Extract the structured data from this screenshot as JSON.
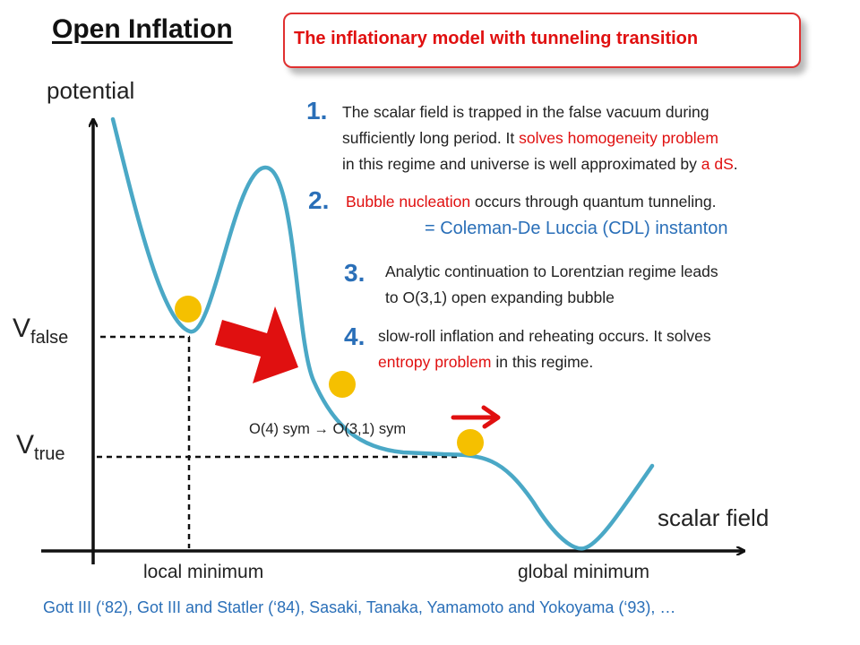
{
  "title": "Open Inflation",
  "subtitle": "The inflationary model with tunneling transition",
  "axes": {
    "y_label": "potential",
    "x_label": "scalar field"
  },
  "levels": {
    "false": {
      "main": "V",
      "sub": "false"
    },
    "true": {
      "main": "V",
      "sub": "true"
    }
  },
  "steps": [
    {
      "number": "1.",
      "lines": [
        [
          {
            "t": "The scalar field is trapped in the false vacuum during"
          }
        ],
        [
          {
            "t": "sufficiently long period. It "
          },
          {
            "t": "solves homogeneity problem",
            "c": "red"
          }
        ],
        [
          {
            "t": "in this regime and universe is well approximated by "
          },
          {
            "t": "a dS",
            "c": "red"
          },
          {
            "t": "."
          }
        ]
      ]
    },
    {
      "number": "2.",
      "lines": [
        [
          {
            "t": "Bubble nucleation",
            "c": "red"
          },
          {
            "t": " occurs through quantum tunneling."
          }
        ]
      ],
      "note": "= Coleman-De Luccia (CDL) instanton"
    },
    {
      "number": "3.",
      "lines": [
        [
          {
            "t": "Analytic continuation to Lorentzian regime leads"
          }
        ],
        [
          {
            "t": "to O(3,1) open expanding bubble"
          }
        ]
      ]
    },
    {
      "number": "4.",
      "lines": [
        [
          {
            "t": "slow-roll inflation and reheating occurs. It solves"
          }
        ],
        [
          {
            "t": "entropy problem",
            "c": "red"
          },
          {
            "t": " in this regime."
          }
        ]
      ]
    }
  ],
  "symmetry_label": "O(4) sym → O(3,1) sym",
  "minima": {
    "local": "local minimum",
    "global": "global minimum"
  },
  "references": "Gott III (‘82), Got III and Statler (‘84),  Sasaki, Tanaka, Yamamoto and Yokoyama (‘93), …",
  "colors": {
    "curve": "#4aa8c6",
    "ball": "#f5c000",
    "arrow": "#e01010",
    "accent_red": "#e01010",
    "accent_blue": "#2a6fb8"
  }
}
